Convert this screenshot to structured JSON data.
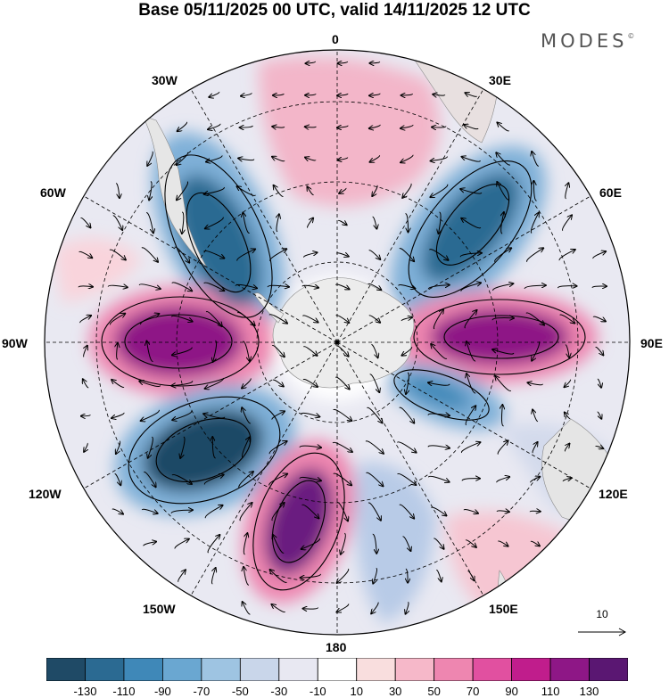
{
  "title": "Base 05/11/2025 00 UTC, valid 14/11/2025 12 UTC",
  "brand": "MODES",
  "brand_mark": "©",
  "longitude_labels": {
    "n0": "0",
    "e30": "30E",
    "e60": "60E",
    "e90": "90E",
    "e120": "120E",
    "e150": "150E",
    "s180": "180",
    "w150": "150W",
    "w120": "120W",
    "w90": "90W",
    "w60": "60W",
    "w30": "30W"
  },
  "vector_scale_label": "10",
  "colorbar": {
    "labels": [
      "-130",
      "-110",
      "-90",
      "-70",
      "-50",
      "-30",
      "-10",
      "10",
      "30",
      "50",
      "70",
      "90",
      "110",
      "130"
    ],
    "colors": [
      "#1f4a66",
      "#2b6a92",
      "#3f88b8",
      "#6aa7d1",
      "#9ec4e2",
      "#c9d6ea",
      "#e8e8f2",
      "#ffffff",
      "#f9dede",
      "#f6b8c9",
      "#ee86b0",
      "#e150a0",
      "#c01d8c",
      "#8e1786",
      "#5a1772"
    ]
  },
  "colors": {
    "land": "#ececec",
    "pos_light": "#f6c6d2",
    "neg_light": "#c5d3ea"
  }
}
